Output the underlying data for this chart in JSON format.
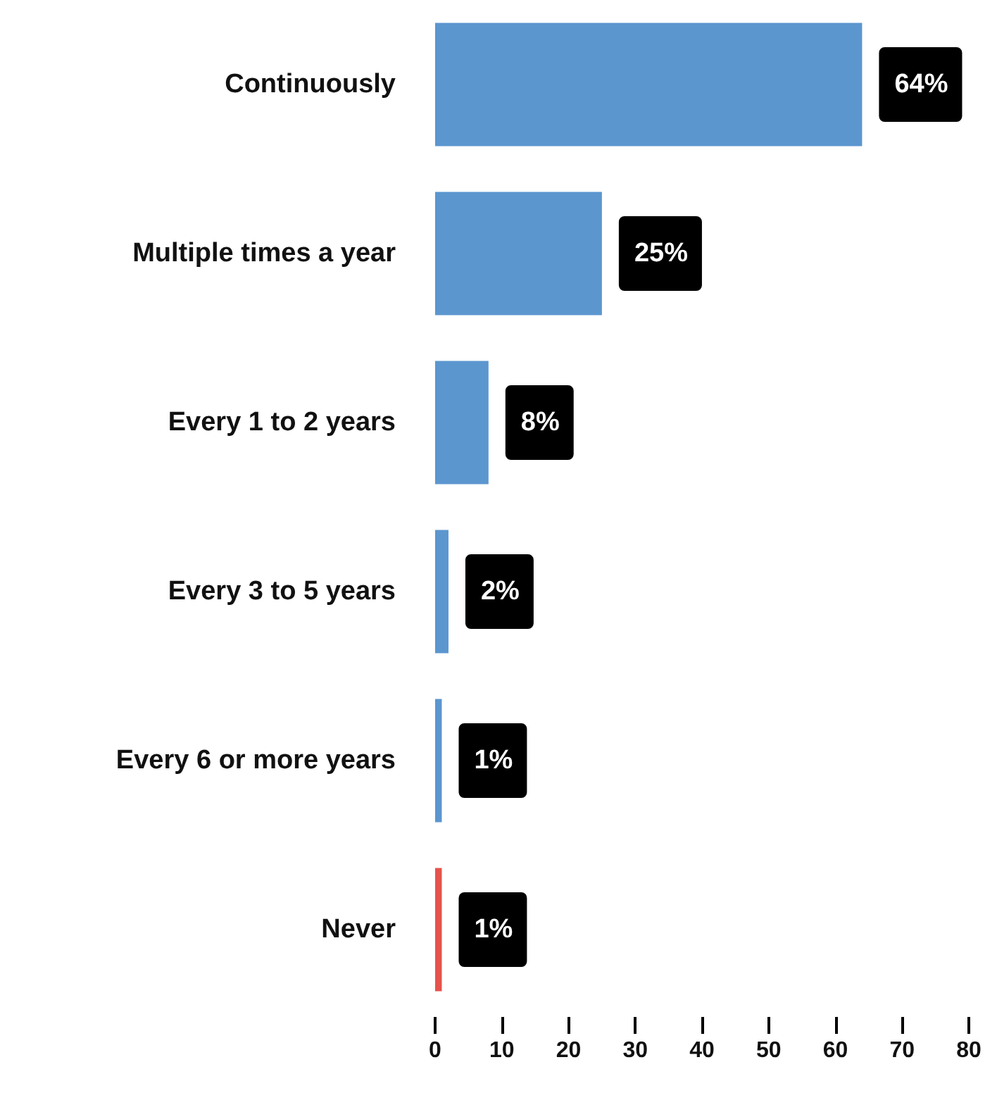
{
  "chart_data": {
    "type": "bar",
    "orientation": "horizontal",
    "categories": [
      "Continuously",
      "Multiple times a year",
      "Every 1 to 2 years",
      "Every 3 to 5 years",
      "Every 6 or more years",
      "Never"
    ],
    "values": [
      64,
      25,
      8,
      2,
      1,
      1
    ],
    "value_labels": [
      "64%",
      "25%",
      "8%",
      "2%",
      "1%",
      "1%"
    ],
    "colors": [
      "#5b96cf",
      "#5b96cf",
      "#5b96cf",
      "#5b96cf",
      "#5b96cf",
      "#e5534b"
    ],
    "xlim": [
      0,
      80
    ],
    "xticks": [
      0,
      10,
      20,
      30,
      40,
      50,
      60,
      70,
      80
    ],
    "grid": false
  }
}
